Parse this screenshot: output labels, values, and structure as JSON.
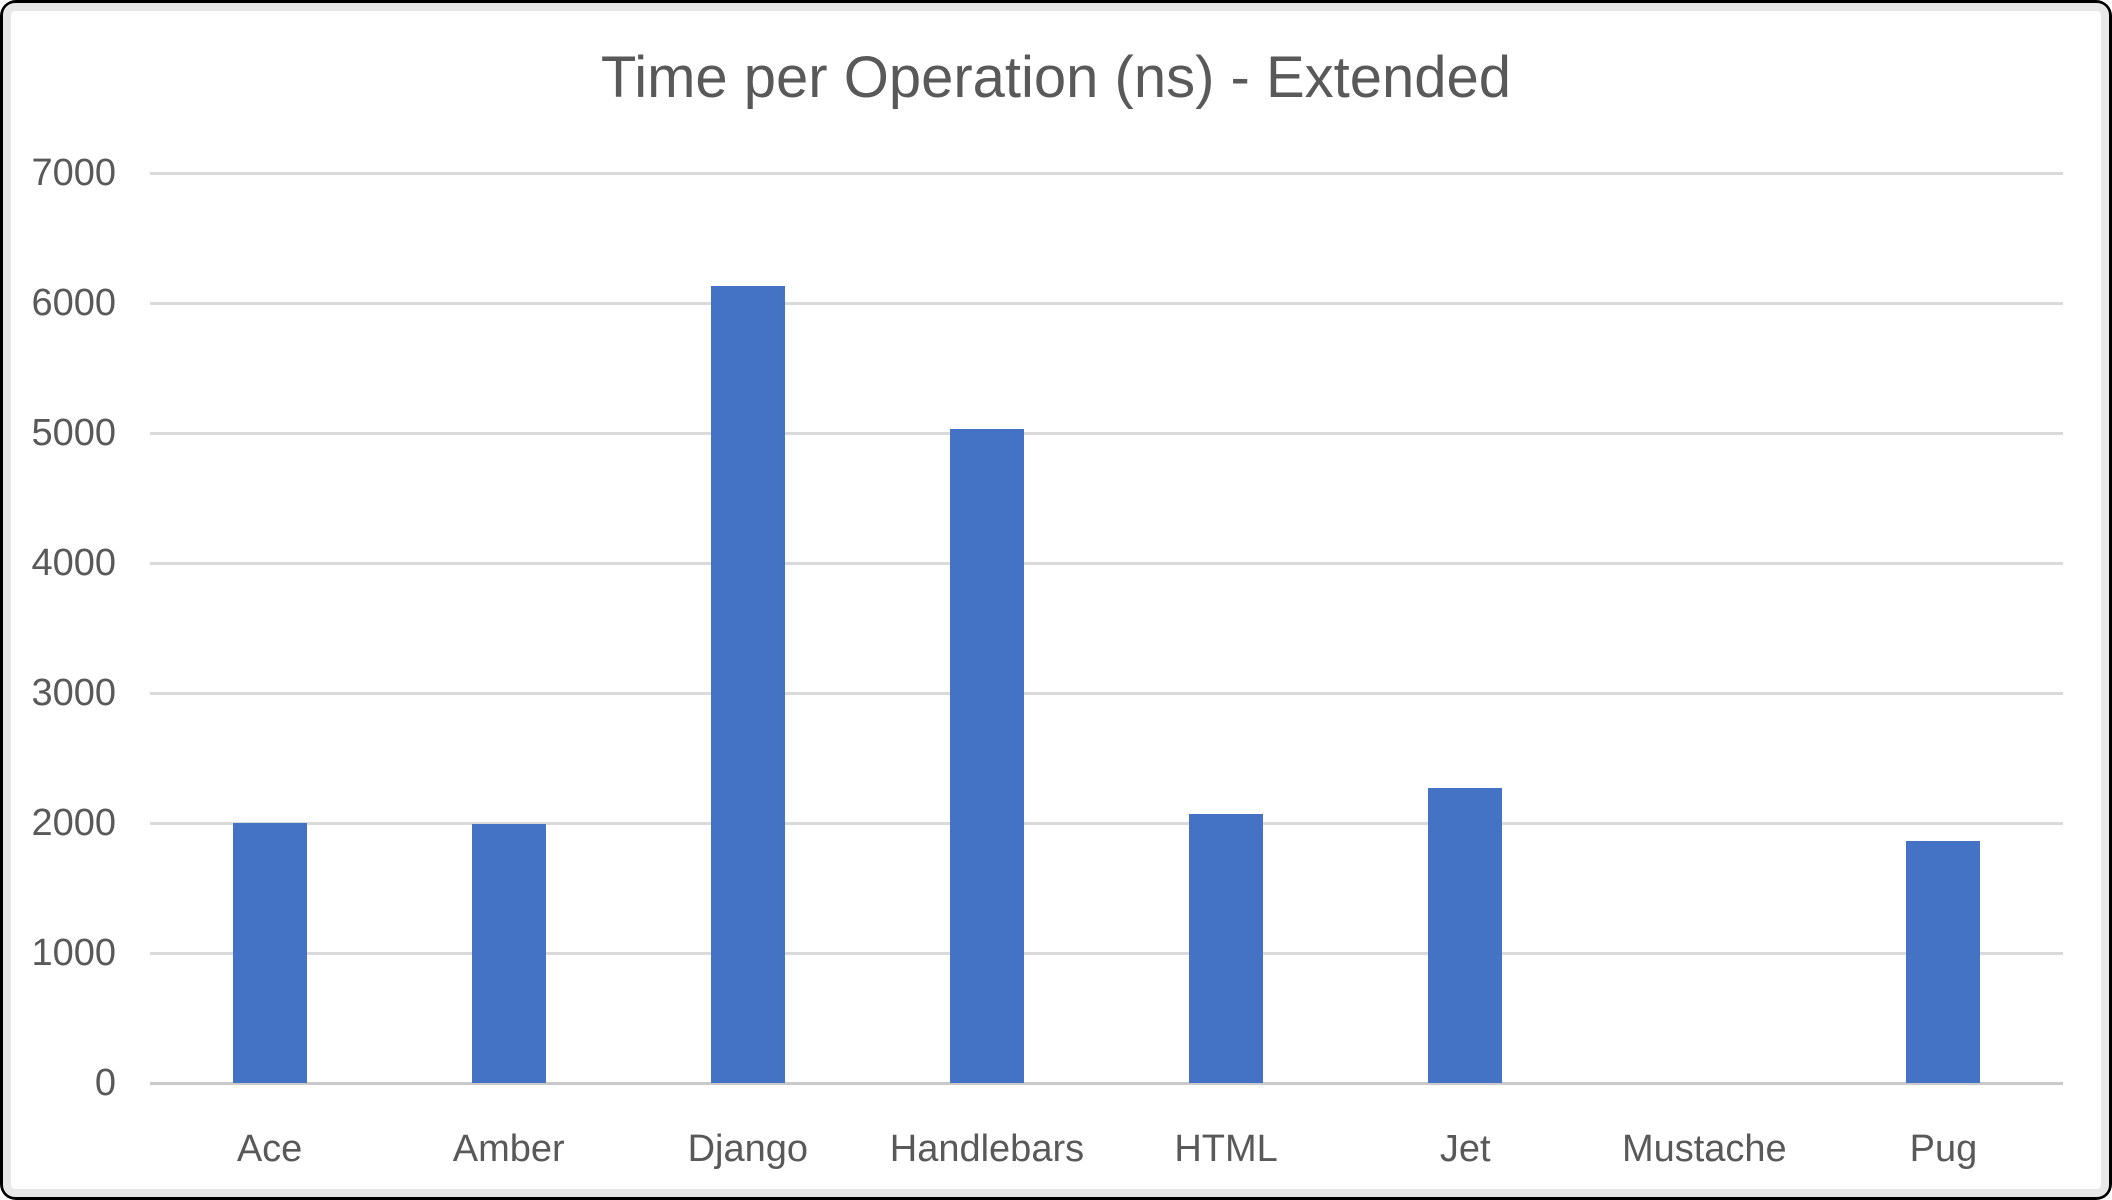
{
  "chart_data": {
    "type": "bar",
    "title": "Time per Operation (ns) - Extended",
    "categories": [
      "Ace",
      "Amber",
      "Django",
      "Handlebars",
      "HTML",
      "Jet",
      "Mustache",
      "Pug"
    ],
    "values": [
      2000,
      1990,
      6130,
      5030,
      2070,
      2270,
      0,
      1860
    ],
    "xlabel": "",
    "ylabel": "",
    "ylim": [
      0,
      7000
    ],
    "yticks": [
      0,
      1000,
      2000,
      3000,
      4000,
      5000,
      6000,
      7000
    ],
    "grid": true,
    "legend": false,
    "colors": {
      "bar": "#4472C4",
      "text": "#595959",
      "gridline": "#DADADA",
      "axis_line": "#C9C9C9",
      "chart_background": "#FFFFFF",
      "frame_border": "#000000",
      "inner_border": "#E8E8E8"
    }
  }
}
